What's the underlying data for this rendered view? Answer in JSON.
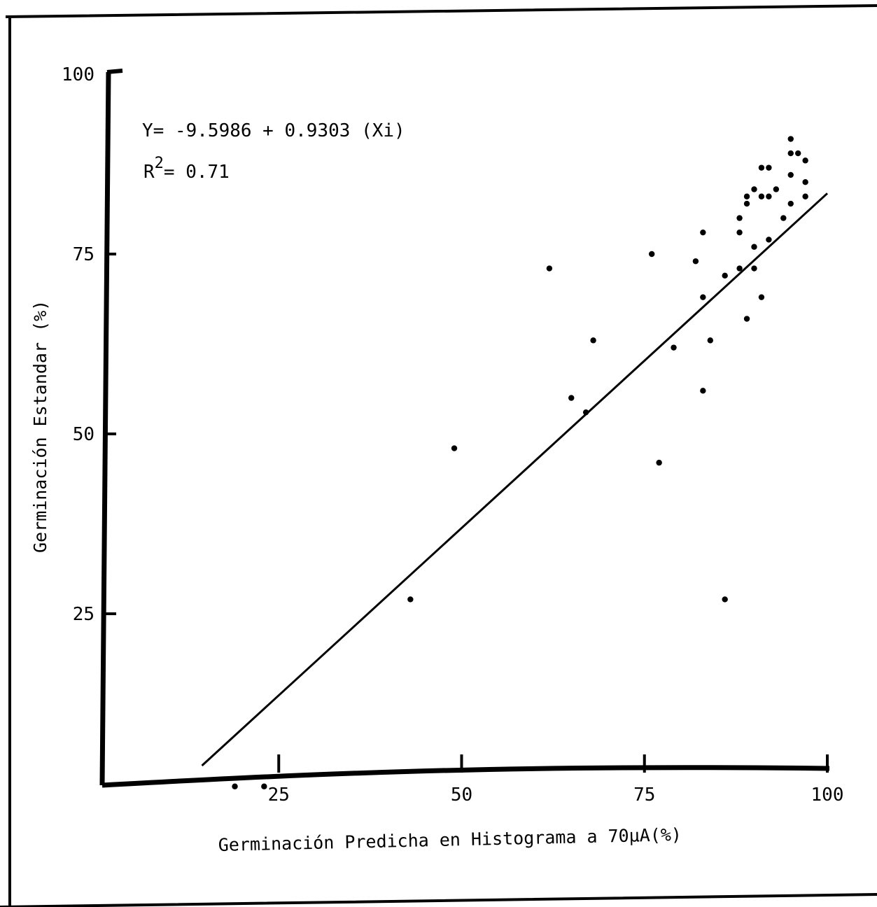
{
  "chart_data": {
    "type": "scatter",
    "xlabel": "Germinación Predicha en Histograma a 70µA(%)",
    "ylabel": "Germinación Estandar (%)",
    "xlim": [
      0,
      100
    ],
    "ylim": [
      0,
      100
    ],
    "x_ticks": [
      "25",
      "50",
      "75",
      "100"
    ],
    "y_ticks": [
      "25",
      "50",
      "75",
      "100"
    ],
    "equation": "Y= -9.5986 + 0.9303 (Xi)",
    "r2_base": "R",
    "r2_exp": "2",
    "r2_rest": "= 0.71",
    "fit": {
      "intercept": -9.5986,
      "slope": 0.9303,
      "x_range": [
        14.5,
        100
      ]
    },
    "grid": false,
    "points": [
      [
        19,
        1
      ],
      [
        23,
        1
      ],
      [
        43,
        27
      ],
      [
        49,
        48
      ],
      [
        62,
        73
      ],
      [
        65,
        55
      ],
      [
        67,
        53
      ],
      [
        68,
        63
      ],
      [
        76,
        75
      ],
      [
        77,
        46
      ],
      [
        79,
        62
      ],
      [
        82,
        74
      ],
      [
        83,
        69
      ],
      [
        83,
        56
      ],
      [
        83,
        78
      ],
      [
        84,
        63
      ],
      [
        86,
        72
      ],
      [
        86,
        27
      ],
      [
        88,
        78
      ],
      [
        88,
        73
      ],
      [
        88,
        80
      ],
      [
        89,
        82
      ],
      [
        89,
        66
      ],
      [
        89,
        83
      ],
      [
        90,
        84
      ],
      [
        90,
        76
      ],
      [
        90,
        73
      ],
      [
        91,
        83
      ],
      [
        91,
        87
      ],
      [
        91,
        69
      ],
      [
        92,
        87
      ],
      [
        92,
        83
      ],
      [
        92,
        77
      ],
      [
        93,
        84
      ],
      [
        94,
        80
      ],
      [
        95,
        86
      ],
      [
        95,
        82
      ],
      [
        95,
        89
      ],
      [
        95,
        91
      ],
      [
        96,
        89
      ],
      [
        97,
        88
      ],
      [
        97,
        83
      ],
      [
        97,
        85
      ]
    ]
  }
}
